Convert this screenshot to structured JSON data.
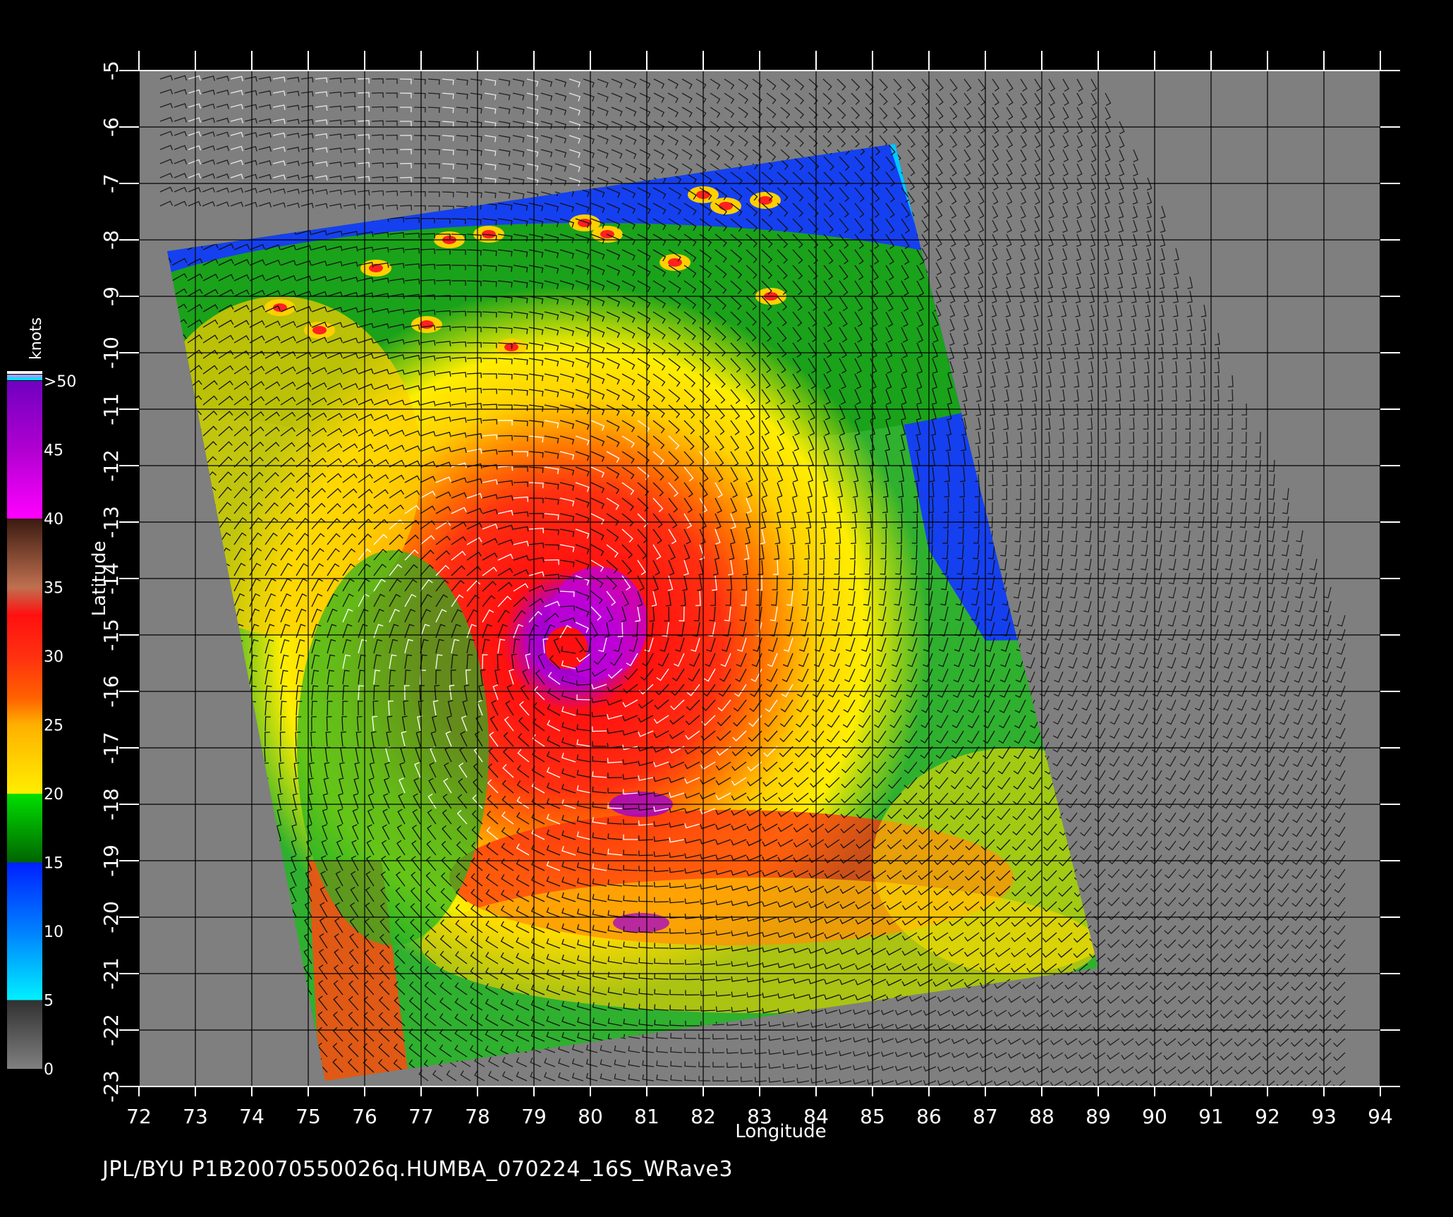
{
  "map": {
    "x_axis_label": "Longitude",
    "y_axis_label": "Latitude",
    "lon_range": [
      72,
      94
    ],
    "lat_range": [
      -23,
      -5
    ],
    "lon_ticks": [
      "72",
      "73",
      "74",
      "75",
      "76",
      "77",
      "78",
      "79",
      "80",
      "81",
      "82",
      "83",
      "84",
      "85",
      "86",
      "87",
      "88",
      "89",
      "90",
      "91",
      "92",
      "93",
      "94"
    ],
    "lat_ticks": [
      "-5",
      "-6",
      "-7",
      "-8",
      "-9",
      "-10",
      "-11",
      "-12",
      "-13",
      "-14",
      "-15",
      "-16",
      "-17",
      "-18",
      "-19",
      "-20",
      "-21",
      "-22",
      "-23"
    ],
    "background_color": "#7f7f7f",
    "storm_center": {
      "lon": 79.7,
      "lat": -15.1
    },
    "swath_corners_lonlat": [
      [
        72.5,
        -8.2
      ],
      [
        85.4,
        -6.3
      ],
      [
        89.0,
        -20.9
      ],
      [
        75.3,
        -22.9
      ]
    ]
  },
  "legend": {
    "unit": "knots",
    "labels": [
      ">50",
      "45",
      "40",
      "35",
      "30",
      "25",
      "20",
      "15",
      "10",
      "5",
      "0"
    ],
    "stops": [
      {
        "value": 0,
        "color": "#808080"
      },
      {
        "value": 5,
        "color": "#303030"
      },
      {
        "value": 5.01,
        "color": "#00f0ff"
      },
      {
        "value": 10,
        "color": "#0080ff"
      },
      {
        "value": 15,
        "color": "#0020ff"
      },
      {
        "value": 15.01,
        "color": "#006400"
      },
      {
        "value": 20,
        "color": "#00e000"
      },
      {
        "value": 20.01,
        "color": "#ffee00"
      },
      {
        "value": 25,
        "color": "#ffb000"
      },
      {
        "value": 27,
        "color": "#ff6000"
      },
      {
        "value": 30,
        "color": "#ff3010"
      },
      {
        "value": 33,
        "color": "#ff1010"
      },
      {
        "value": 35,
        "color": "#c07050"
      },
      {
        "value": 40,
        "color": "#3a1a10"
      },
      {
        "value": 40.01,
        "color": "#ff00ff"
      },
      {
        "value": 45,
        "color": "#b000d0"
      },
      {
        "value": 50,
        "color": "#7000c0"
      }
    ]
  },
  "footer": {
    "text": "JPL/BYU  P1B20070550026q.HUMBA_070224_16S_WRave3"
  }
}
